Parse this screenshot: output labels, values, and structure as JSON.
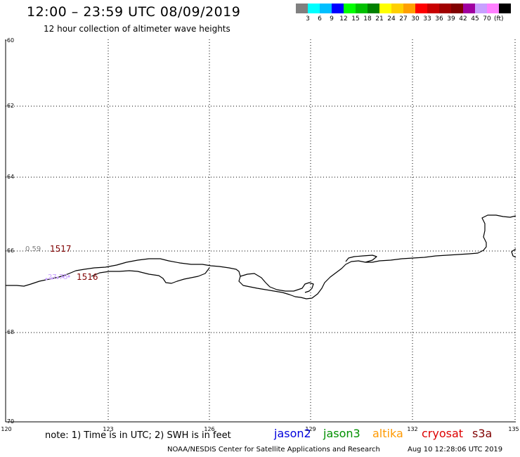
{
  "header": {
    "title": "12:00 – 23:59 UTC 08/09/2019",
    "subtitle": "12 hour collection of altimeter wave heights"
  },
  "color_scale": {
    "unit": "(ft)",
    "entries": [
      {
        "label": "",
        "color": "#808080"
      },
      {
        "label": "3",
        "color": "#00ffff"
      },
      {
        "label": "6",
        "color": "#00bfff"
      },
      {
        "label": "9",
        "color": "#0000ff"
      },
      {
        "label": "12",
        "color": "#00ff00"
      },
      {
        "label": "15",
        "color": "#00c000"
      },
      {
        "label": "18",
        "color": "#008000"
      },
      {
        "label": "21",
        "color": "#ffff00"
      },
      {
        "label": "24",
        "color": "#ffd000"
      },
      {
        "label": "27",
        "color": "#ffa000"
      },
      {
        "label": "30",
        "color": "#ff0000"
      },
      {
        "label": "33",
        "color": "#c80000"
      },
      {
        "label": "36",
        "color": "#a00000"
      },
      {
        "label": "39",
        "color": "#800000"
      },
      {
        "label": "42",
        "color": "#a000a0"
      },
      {
        "label": "45",
        "color": "#c8a0ff"
      },
      {
        "label": "70",
        "color": "#ff80ff"
      },
      {
        "label": "",
        "color": "#000000"
      }
    ]
  },
  "map": {
    "lon_ticks": [
      "120",
      "123",
      "126",
      "129",
      "132",
      "135"
    ],
    "lat_ticks": [
      "-60",
      "-62",
      "-64",
      "-66",
      "-68",
      "-70"
    ],
    "observations": [
      {
        "value": "0.59",
        "time": "1517",
        "value_color": "#808080",
        "time_color": "#800000"
      },
      {
        "value": "27.75",
        "time": "1516",
        "value_color": "#c8a0ff",
        "time_color": "#800000"
      }
    ]
  },
  "footer": {
    "note": "note:  1) Time is in UTC;  2) SWH is in feet",
    "missions": [
      {
        "label": "jason2",
        "color": "#0000dd"
      },
      {
        "label": "jason3",
        "color": "#009000"
      },
      {
        "label": "altika",
        "color": "#ff9900"
      },
      {
        "label": "cryosat",
        "color": "#dd0000"
      },
      {
        "label": "s3a",
        "color": "#800000"
      }
    ],
    "credit": "NOAA/NESDIS Center for Satellite Applications and Research",
    "timestamp": "Aug 10 12:28:06 UTC 2019"
  }
}
